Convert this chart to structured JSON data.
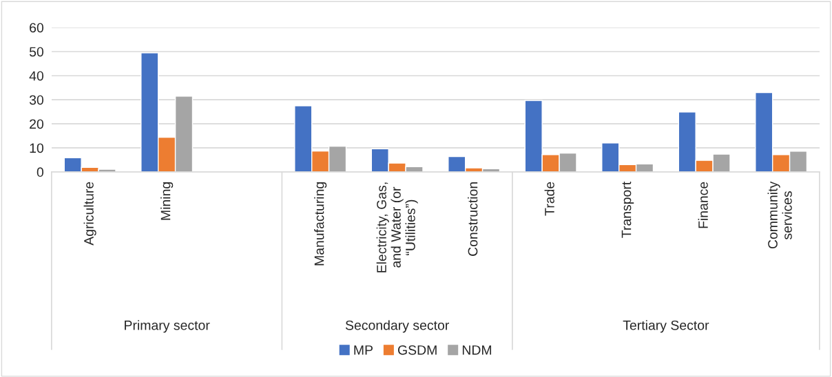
{
  "chart_data": {
    "type": "bar",
    "categories": [
      "Agriculture",
      "Mining",
      null,
      "Manufacturing",
      "Electricity, Gas,\nand Water (or\n“Utilities”)",
      "Construction",
      "Trade",
      "Transport",
      "Finance",
      "Community\nservices"
    ],
    "series": [
      {
        "name": "MP",
        "color": "#4472c4",
        "values": [
          5.9,
          49.5,
          null,
          27.5,
          9.6,
          6.4,
          29.7,
          12.0,
          24.9,
          33.0
        ]
      },
      {
        "name": "GSDM",
        "color": "#ed7d31",
        "values": [
          1.9,
          14.4,
          null,
          8.7,
          3.7,
          1.7,
          7.2,
          3.0,
          4.8,
          7.2
        ]
      },
      {
        "name": "NDM",
        "color": "#a5a5a5",
        "values": [
          1.1,
          31.5,
          null,
          10.7,
          2.2,
          1.3,
          7.8,
          3.3,
          7.4,
          8.6
        ]
      }
    ],
    "annotations": [
      "Primary sector",
      "Secondary sector",
      "Tertiary Sector"
    ],
    "ylim": [
      0,
      60
    ],
    "yticks": [
      0,
      10,
      20,
      30,
      40,
      50,
      60
    ],
    "grid": "y",
    "legend": "bottom"
  }
}
